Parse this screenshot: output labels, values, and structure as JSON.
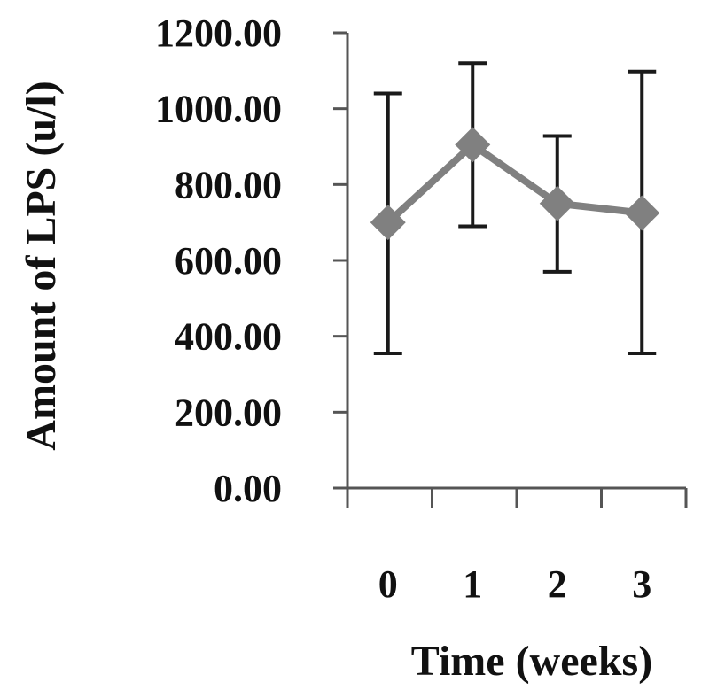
{
  "chart_data": {
    "type": "line",
    "title": "",
    "xlabel": "Time (weeks)",
    "ylabel": "Amount of LPS (u/l)",
    "categories": [
      "0",
      "1",
      "2",
      "3"
    ],
    "y_ticks": [
      "0.00",
      "200.00",
      "400.00",
      "600.00",
      "800.00",
      "1000.00",
      "1200.00"
    ],
    "ylim": [
      0,
      1200
    ],
    "grid": false,
    "legend": "none",
    "series": [
      {
        "values": [
          700,
          905,
          750,
          725
        ],
        "error_low": [
          355,
          690,
          570,
          355
        ],
        "error_high": [
          1040,
          1120,
          928,
          1098
        ],
        "color": "#808080",
        "marker": "diamond"
      }
    ],
    "error_bar_color": "#1a1a1a",
    "axis_color": "#555555"
  }
}
